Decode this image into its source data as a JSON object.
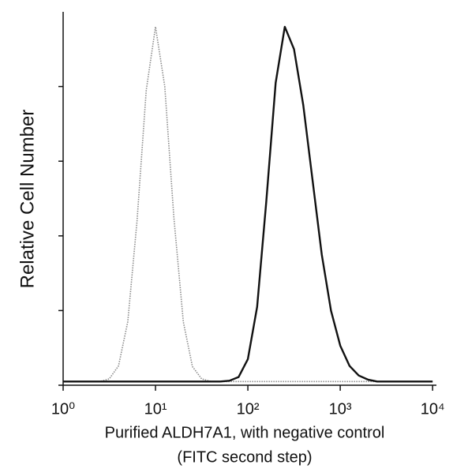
{
  "chart_data": {
    "type": "line",
    "xlabel": "Purified ALDH7A1, with negative control",
    "xlabel_line2": "(FITC second step)",
    "ylabel": "Relative Cell Number",
    "xscale": "log",
    "xlim": [
      1,
      11000
    ],
    "ylim": [
      0,
      100
    ],
    "xticks": [
      {
        "value": 1,
        "label": "10⁰"
      },
      {
        "value": 10,
        "label": "10¹"
      },
      {
        "value": 100,
        "label": "10²"
      },
      {
        "value": 1000,
        "label": "10³"
      },
      {
        "value": 10000,
        "label": "10⁴"
      }
    ],
    "yticks": [
      0,
      20,
      40,
      60,
      80
    ],
    "x": [
      1,
      1.26,
      1.58,
      2,
      2.51,
      3.16,
      3.98,
      5.01,
      6.31,
      7.94,
      10,
      12.6,
      15.8,
      20,
      25.1,
      31.6,
      39.8,
      50.1,
      63.1,
      79.4,
      100,
      126,
      158,
      200,
      251,
      316,
      398,
      501,
      631,
      794,
      1000,
      1259,
      1585,
      1995,
      2512,
      3162,
      3981,
      5012,
      6310,
      7943,
      10000
    ],
    "series": [
      {
        "color": "#8a8a8a",
        "dashed": true,
        "values": [
          1,
          1,
          1,
          1,
          1,
          1.7,
          5.2,
          17,
          44,
          79,
          96,
          80,
          45,
          17,
          5,
          1.7,
          1,
          1,
          1,
          1,
          1,
          1,
          1,
          1,
          1,
          1,
          1,
          1,
          1,
          1,
          1,
          1,
          1,
          1,
          1,
          1,
          1,
          1,
          1,
          1,
          1
        ]
      },
      {
        "color": "#111111",
        "dashed": false,
        "values": [
          1,
          1,
          1,
          1,
          1,
          1,
          1,
          1,
          1,
          1,
          1,
          1,
          1,
          1,
          1,
          1,
          1,
          1,
          1.2,
          2.2,
          7,
          21,
          49,
          81,
          96,
          90,
          75,
          55,
          35,
          20,
          10.6,
          5.2,
          2.6,
          1.5,
          1,
          1,
          1,
          1,
          1,
          1,
          1
        ]
      }
    ]
  }
}
